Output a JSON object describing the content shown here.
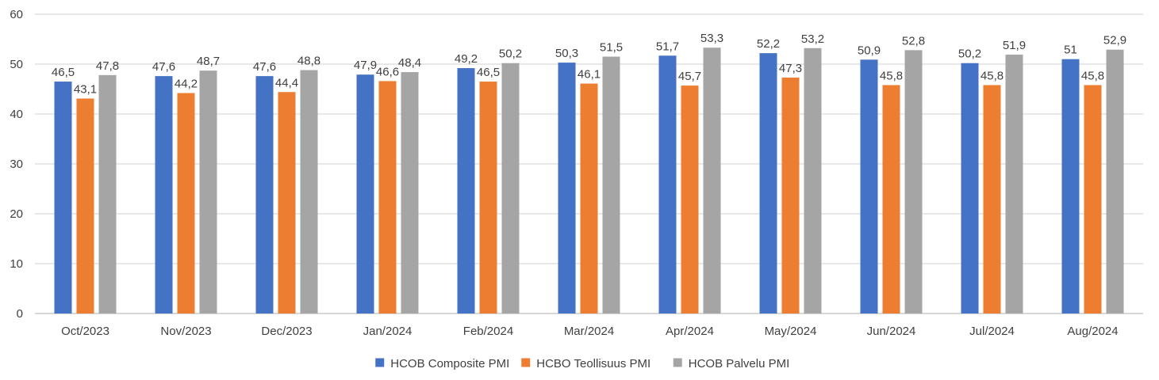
{
  "chart_data": {
    "type": "bar",
    "title": "",
    "xlabel": "",
    "ylabel": "",
    "ylim": [
      0,
      60
    ],
    "yticks": [
      0,
      10,
      20,
      30,
      40,
      50,
      60
    ],
    "grid": true,
    "legend_position": "bottom",
    "categories": [
      "Oct/2023",
      "Nov/2023",
      "Dec/2023",
      "Jan/2024",
      "Feb/2024",
      "Mar/2024",
      "Apr/2024",
      "May/2024",
      "Jun/2024",
      "Jul/2024",
      "Aug/2024"
    ],
    "series": [
      {
        "name": "HCOB Composite PMI",
        "color": "#4472c4",
        "values": [
          46.5,
          47.6,
          47.6,
          47.9,
          49.2,
          50.3,
          51.7,
          52.2,
          50.9,
          50.2,
          51
        ],
        "labels": [
          "46,5",
          "47,6",
          "47,6",
          "47,9",
          "49,2",
          "50,3",
          "51,7",
          "52,2",
          "50,9",
          "50,2",
          "51"
        ]
      },
      {
        "name": "HCBO Teollisuus PMI",
        "color": "#ed7d31",
        "values": [
          43.1,
          44.2,
          44.4,
          46.6,
          46.5,
          46.1,
          45.7,
          47.3,
          45.8,
          45.8,
          45.8
        ],
        "labels": [
          "43,1",
          "44,2",
          "44,4",
          "46,6",
          "46,5",
          "46,1",
          "45,7",
          "47,3",
          "45,8",
          "45,8",
          "45,8"
        ]
      },
      {
        "name": "HCOB Palvelu PMI",
        "color": "#a5a5a5",
        "values": [
          47.8,
          48.7,
          48.8,
          48.4,
          50.2,
          51.5,
          53.3,
          53.2,
          52.8,
          51.9,
          52.9
        ],
        "labels": [
          "47,8",
          "48,7",
          "48,8",
          "48,4",
          "50,2",
          "51,5",
          "53,3",
          "53,2",
          "52,8",
          "51,9",
          "52,9"
        ]
      }
    ]
  }
}
